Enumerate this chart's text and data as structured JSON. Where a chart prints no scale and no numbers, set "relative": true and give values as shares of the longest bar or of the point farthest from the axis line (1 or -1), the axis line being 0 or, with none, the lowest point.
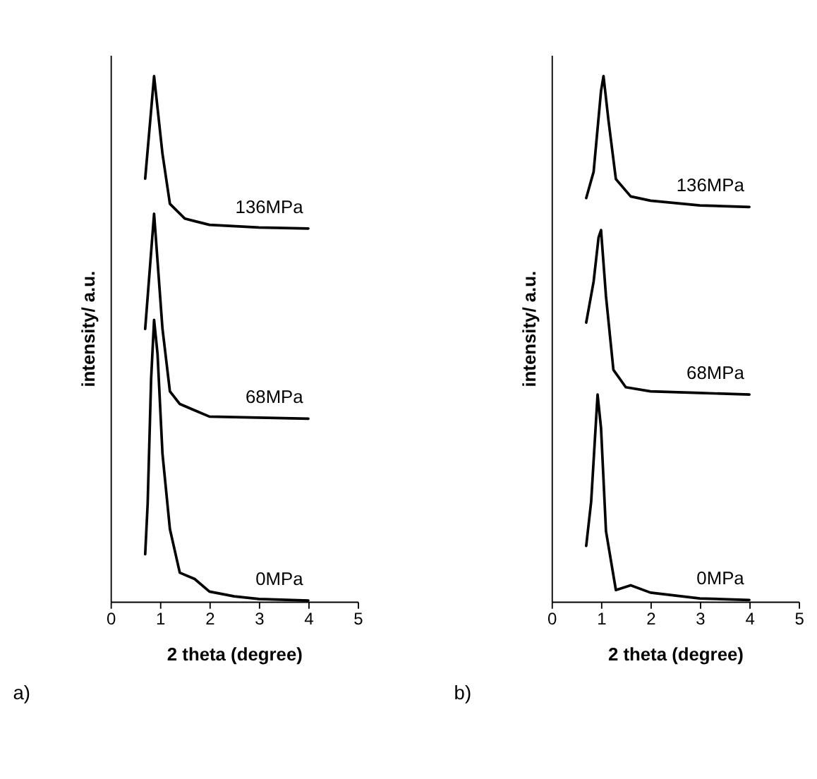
{
  "chart_data": [
    {
      "type": "line",
      "relative": true,
      "xlabel": "2 theta (degree)",
      "ylabel": "intensity/ a.u.",
      "xlim": [
        0,
        5
      ],
      "xticks": [
        0,
        1,
        2,
        3,
        4,
        5
      ],
      "marker": "none",
      "line_style": "solid",
      "annotations": [
        "a)"
      ],
      "series": [
        {
          "name": "0MPa",
          "color": "#000000",
          "x": [
            0.7,
            0.75,
            0.82,
            0.88,
            0.95,
            1.05,
            1.2,
            1.4,
            1.7,
            2,
            2.5,
            3,
            4
          ],
          "values": [
            0.09,
            0.186,
            0.424,
            0.536,
            0.471,
            0.281,
            0.138,
            0.055,
            0.043,
            0.019,
            0.01,
            0.005,
            0.002
          ]
        },
        {
          "name": "68MPa",
          "color": "#000000",
          "x": [
            0.7,
            0.88,
            1.05,
            1.2,
            1.4,
            1.7,
            2,
            3,
            4
          ],
          "values": [
            0.519,
            0.738,
            0.519,
            0.4,
            0.376,
            0.364,
            0.352,
            0.35,
            0.348
          ]
        },
        {
          "name": "136MPa",
          "color": "#000000",
          "x": [
            0.7,
            0.88,
            1.05,
            1.2,
            1.5,
            1.7,
            2,
            3,
            4
          ],
          "values": [
            0.805,
            1.0,
            0.852,
            0.757,
            0.729,
            0.724,
            0.717,
            0.712,
            0.71
          ]
        }
      ]
    },
    {
      "type": "line",
      "relative": true,
      "xlabel": "2 theta (degree)",
      "ylabel": "intensity/ a.u.",
      "xlim": [
        0,
        5
      ],
      "xticks": [
        0,
        1,
        2,
        3,
        4,
        5
      ],
      "marker": "none",
      "line_style": "solid",
      "annotations": [
        "b)"
      ],
      "series": [
        {
          "name": "0MPa",
          "color": "#000000",
          "x": [
            0.7,
            0.8,
            0.93,
            1.0,
            1.1,
            1.3,
            1.6,
            2,
            3,
            4
          ],
          "values": [
            0.106,
            0.19,
            0.394,
            0.33,
            0.134,
            0.022,
            0.031,
            0.017,
            0.006,
            0.003
          ]
        },
        {
          "name": "68MPa",
          "color": "#000000",
          "x": [
            0.7,
            0.85,
            0.95,
            1.0,
            1.1,
            1.25,
            1.5,
            2,
            3,
            4
          ],
          "values": [
            0.531,
            0.609,
            0.693,
            0.707,
            0.581,
            0.441,
            0.408,
            0.4,
            0.397,
            0.394
          ]
        },
        {
          "name": "136MPa",
          "color": "#000000",
          "x": [
            0.7,
            0.85,
            1.0,
            1.05,
            1.15,
            1.3,
            1.6,
            2,
            3,
            4
          ],
          "values": [
            0.768,
            0.818,
            0.972,
            1.0,
            0.916,
            0.804,
            0.771,
            0.763,
            0.754,
            0.751
          ]
        }
      ]
    }
  ]
}
